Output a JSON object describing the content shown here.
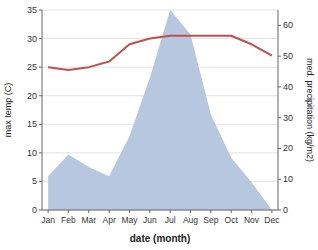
{
  "chart_data": {
    "type": "line",
    "xlabel": "date (month)",
    "ylabel": "max temp (C)",
    "y2label": "med. precipitation (kg/m2)",
    "categories": [
      "Jan",
      "Feb",
      "Mar",
      "Apr",
      "May",
      "Jun",
      "Jul",
      "Aug",
      "Sep",
      "Oct",
      "Nov",
      "Dec"
    ],
    "series": [
      {
        "type": "area",
        "axis": "y2",
        "color": "#b8c7e0",
        "values": [
          11,
          18,
          14,
          11,
          24,
          43,
          65,
          57,
          31,
          17,
          9,
          0
        ]
      },
      {
        "type": "line",
        "color": "#c0504d",
        "values": [
          25,
          24.5,
          25,
          26,
          29,
          30,
          30.5,
          30.5,
          30.5,
          30.5,
          29,
          27
        ]
      }
    ],
    "ylim": [
      0,
      35
    ],
    "yticks": [
      0,
      5,
      10,
      15,
      20,
      25,
      30,
      35
    ],
    "y2lim": [
      0,
      65
    ],
    "y2ticks": [
      0,
      10,
      20,
      30,
      40,
      50,
      60
    ],
    "grid": true
  }
}
